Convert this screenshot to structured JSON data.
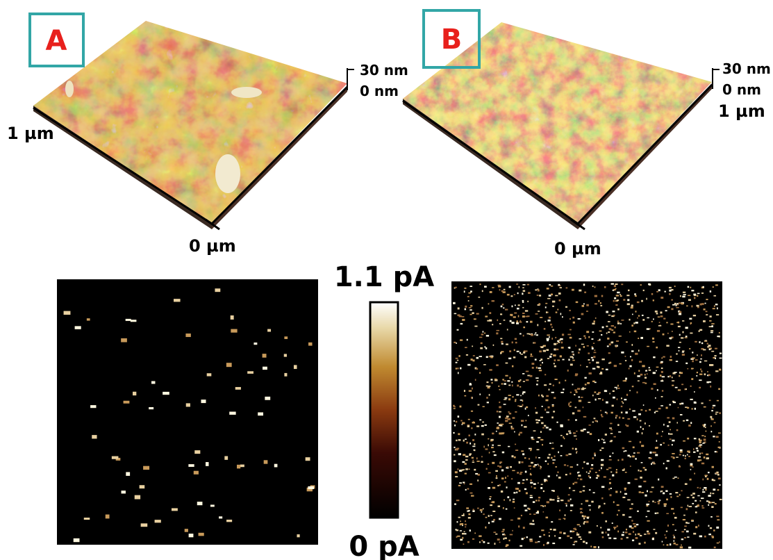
{
  "panels": [
    {
      "label": "A",
      "size_label": "1 µm",
      "origin_label": "0 µm",
      "z_max": "30 nm",
      "z_min": "0 nm"
    },
    {
      "label": "B",
      "size_label": "1 µm",
      "origin_label": "0 µm",
      "z_max": "30 nm",
      "z_min": "0 nm"
    }
  ],
  "colorbar": {
    "max": "1.1 pA",
    "min": "0 pA"
  }
}
